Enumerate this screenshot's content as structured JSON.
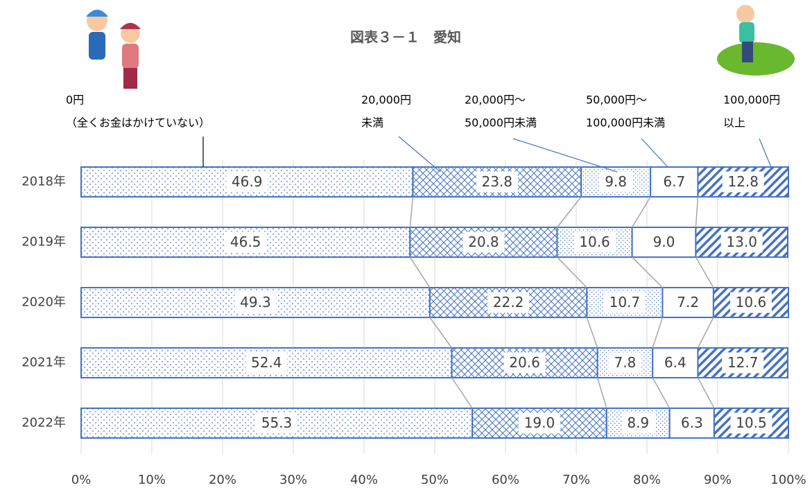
{
  "chart_data": {
    "type": "stacked-bar-horizontal-percent",
    "title": "図表３－１　愛知",
    "categories": [
      "2018年",
      "2019年",
      "2020年",
      "2021年",
      "2022年"
    ],
    "series": [
      {
        "name": [
          "0円",
          "（全くお金はかけていない）"
        ],
        "color": "#4472c4",
        "values": [
          46.9,
          46.5,
          49.3,
          52.4,
          55.3
        ],
        "value_labels": [
          "46.9",
          "46.5",
          "49.3",
          "52.4",
          "55.3"
        ]
      },
      {
        "name": [
          "20,000円",
          "未満"
        ],
        "color": "#4472c4",
        "values": [
          23.8,
          20.8,
          22.2,
          20.6,
          19.0
        ],
        "value_labels": [
          "23.8",
          "20.8",
          "22.2",
          "20.6",
          "19.0"
        ]
      },
      {
        "name": [
          "20,000円～",
          "50,000円未満"
        ],
        "color": "#4472c4",
        "values": [
          9.8,
          10.6,
          10.7,
          7.8,
          8.9
        ],
        "value_labels": [
          "9.8",
          "10.6",
          "10.7",
          "7.8",
          "8.9"
        ]
      },
      {
        "name": [
          "50,000円～",
          "100,000円未満"
        ],
        "color": "#4472c4",
        "values": [
          6.7,
          9.0,
          7.2,
          6.4,
          6.3
        ],
        "value_labels": [
          "6.7",
          "9.0",
          "7.2",
          "6.4",
          "6.3"
        ]
      },
      {
        "name": [
          "100,000円",
          "以上"
        ],
        "color": "#4472c4",
        "values": [
          12.8,
          13.0,
          10.6,
          12.7,
          10.5
        ],
        "value_labels": [
          "12.8",
          "13.0",
          "10.6",
          "12.7",
          "10.5"
        ]
      }
    ],
    "xlim": [
      0,
      100
    ],
    "xticks": [
      {
        "value": 0,
        "label": "0%"
      },
      {
        "value": 10,
        "label": "10%"
      },
      {
        "value": 20,
        "label": "20%"
      },
      {
        "value": 30,
        "label": "30%"
      },
      {
        "value": 40,
        "label": "40%"
      },
      {
        "value": 50,
        "label": "50%"
      },
      {
        "value": 60,
        "label": "60%"
      },
      {
        "value": 70,
        "label": "70%"
      },
      {
        "value": 80,
        "label": "80%"
      },
      {
        "value": 90,
        "label": "90%"
      },
      {
        "value": 100,
        "label": "100%"
      }
    ],
    "grid": true
  }
}
